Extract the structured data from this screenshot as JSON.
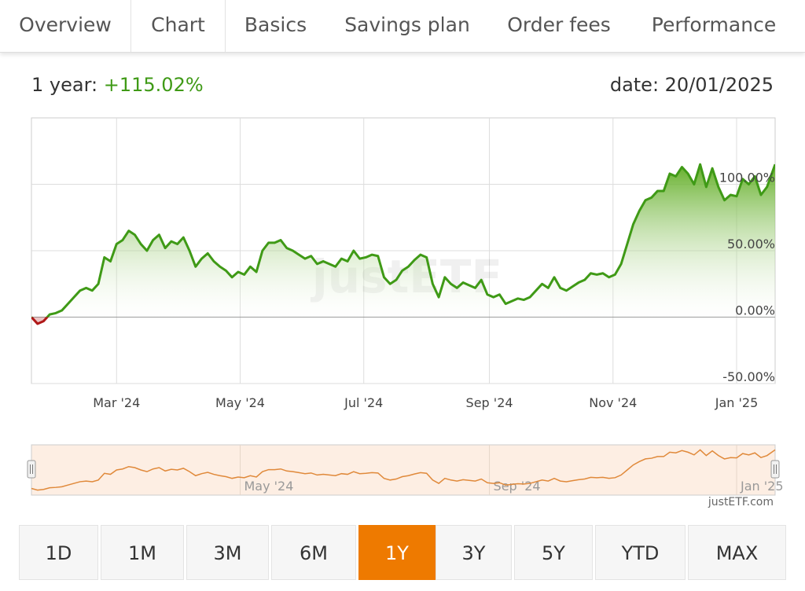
{
  "tabs": [
    "Overview",
    "Chart",
    "Basics",
    "Savings plan",
    "Order fees",
    "Performance"
  ],
  "active_tab": "Chart",
  "header": {
    "period_label": "1 year:",
    "performance": "+115.02%",
    "date_text": "date: 20/01/2025"
  },
  "colors": {
    "positive": "#3f9a16",
    "negative": "#b01818",
    "accent": "#ee7a00",
    "navigator_line": "#e0893a",
    "navigator_fill": "#fdeee3"
  },
  "watermark": "justETF",
  "credit": "justETF.com",
  "ranges": [
    "1D",
    "1M",
    "3M",
    "6M",
    "1Y",
    "3Y",
    "5Y",
    "YTD",
    "MAX"
  ],
  "active_range": "1Y",
  "chart_data": {
    "type": "area",
    "title": "",
    "xlabel": "",
    "ylabel": "",
    "ylim": [
      -50,
      150
    ],
    "y_ticks": [
      -50,
      0,
      50,
      100
    ],
    "y_tick_labels": [
      "-50.00%",
      "0.00%",
      "50.00%",
      "100.00%"
    ],
    "x_ticks": [
      "2024-03-01",
      "2024-05-01",
      "2024-07-01",
      "2024-09-01",
      "2024-11-01",
      "2025-01-01"
    ],
    "x_tick_labels": [
      "Mar '24",
      "May '24",
      "Jul '24",
      "Sep '24",
      "Nov '24",
      "Jan '25"
    ],
    "x_range": [
      "2024-01-19",
      "2025-01-20"
    ],
    "grid": true,
    "series": [
      {
        "x": [
          "2024-01-19",
          "2024-01-22",
          "2024-01-25",
          "2024-01-28",
          "2024-01-31",
          "2024-02-03",
          "2024-02-06",
          "2024-02-09",
          "2024-02-12",
          "2024-02-15",
          "2024-02-18",
          "2024-02-21",
          "2024-02-24",
          "2024-02-27",
          "2024-03-01",
          "2024-03-04",
          "2024-03-07",
          "2024-03-10",
          "2024-03-13",
          "2024-03-16",
          "2024-03-19",
          "2024-03-22",
          "2024-03-25",
          "2024-03-28",
          "2024-03-31",
          "2024-04-03",
          "2024-04-06",
          "2024-04-09",
          "2024-04-12",
          "2024-04-15",
          "2024-04-18",
          "2024-04-21",
          "2024-04-24",
          "2024-04-27",
          "2024-04-30",
          "2024-05-03",
          "2024-05-06",
          "2024-05-09",
          "2024-05-12",
          "2024-05-15",
          "2024-05-18",
          "2024-05-21",
          "2024-05-24",
          "2024-05-27",
          "2024-05-30",
          "2024-06-02",
          "2024-06-05",
          "2024-06-08",
          "2024-06-11",
          "2024-06-14",
          "2024-06-17",
          "2024-06-20",
          "2024-06-23",
          "2024-06-26",
          "2024-06-29",
          "2024-07-02",
          "2024-07-05",
          "2024-07-08",
          "2024-07-11",
          "2024-07-14",
          "2024-07-17",
          "2024-07-20",
          "2024-07-23",
          "2024-07-26",
          "2024-07-29",
          "2024-08-01",
          "2024-08-04",
          "2024-08-07",
          "2024-08-10",
          "2024-08-13",
          "2024-08-16",
          "2024-08-19",
          "2024-08-22",
          "2024-08-25",
          "2024-08-28",
          "2024-08-31",
          "2024-09-03",
          "2024-09-06",
          "2024-09-09",
          "2024-09-12",
          "2024-09-15",
          "2024-09-18",
          "2024-09-21",
          "2024-09-24",
          "2024-09-27",
          "2024-09-30",
          "2024-10-03",
          "2024-10-06",
          "2024-10-09",
          "2024-10-12",
          "2024-10-15",
          "2024-10-18",
          "2024-10-21",
          "2024-10-24",
          "2024-10-27",
          "2024-10-30",
          "2024-11-02",
          "2024-11-05",
          "2024-11-08",
          "2024-11-11",
          "2024-11-14",
          "2024-11-17",
          "2024-11-20",
          "2024-11-23",
          "2024-11-26",
          "2024-11-29",
          "2024-12-02",
          "2024-12-05",
          "2024-12-08",
          "2024-12-11",
          "2024-12-14",
          "2024-12-17",
          "2024-12-20",
          "2024-12-23",
          "2024-12-26",
          "2024-12-29",
          "2025-01-01",
          "2025-01-04",
          "2025-01-07",
          "2025-01-10",
          "2025-01-13",
          "2025-01-16",
          "2025-01-20"
        ],
        "values": [
          0,
          -5,
          -3,
          2,
          3,
          5,
          10,
          15,
          20,
          22,
          20,
          25,
          45,
          42,
          55,
          58,
          65,
          62,
          55,
          50,
          58,
          62,
          52,
          57,
          55,
          60,
          50,
          38,
          44,
          48,
          42,
          38,
          35,
          30,
          34,
          32,
          38,
          34,
          50,
          56,
          56,
          58,
          52,
          50,
          47,
          44,
          46,
          40,
          42,
          40,
          38,
          44,
          42,
          50,
          44,
          45,
          47,
          46,
          30,
          25,
          28,
          35,
          38,
          43,
          47,
          45,
          25,
          15,
          30,
          25,
          22,
          26,
          24,
          22,
          28,
          17,
          15,
          17,
          10,
          12,
          14,
          13,
          15,
          20,
          25,
          22,
          30,
          22,
          20,
          23,
          26,
          28,
          33,
          32,
          33,
          30,
          32,
          40,
          55,
          70,
          80,
          88,
          90,
          95,
          95,
          108,
          106,
          113,
          108,
          100,
          115,
          98,
          112,
          98,
          88,
          92,
          91,
          104,
          100,
          106,
          92,
          98,
          115
        ]
      }
    ]
  }
}
